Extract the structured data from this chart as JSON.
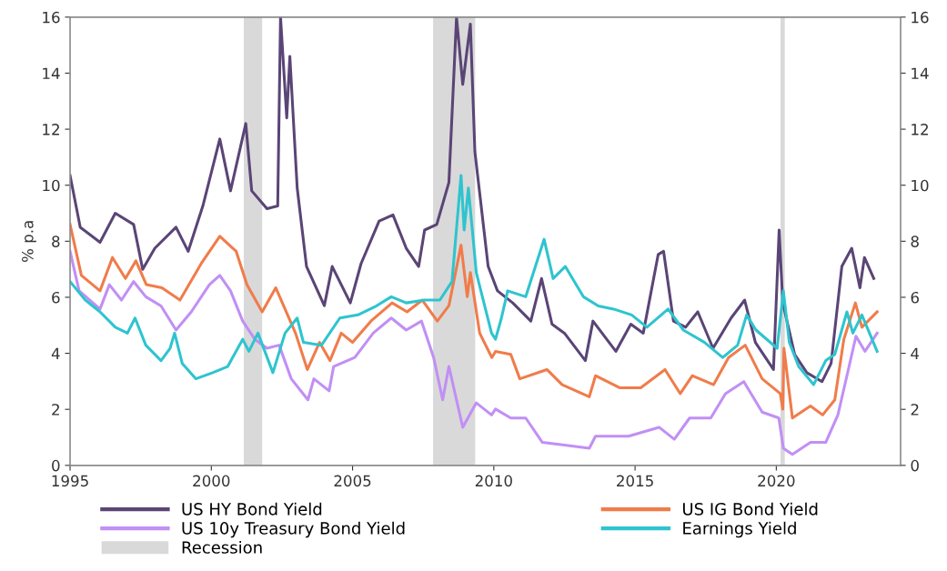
{
  "chart_data": {
    "type": "line",
    "ylabel": "% p.a",
    "xlim": [
      1995,
      2024.4
    ],
    "xticks": [
      1995,
      2000,
      2005,
      2010,
      2015,
      2020
    ],
    "ylim": [
      0,
      16
    ],
    "yticks": [
      0,
      2,
      4,
      6,
      8,
      10,
      12,
      14,
      16
    ],
    "y2lim": [
      0,
      16
    ],
    "y2ticks": [
      0,
      2,
      4,
      6,
      8,
      10,
      12,
      14,
      16
    ],
    "grid": false,
    "legend": "bottom",
    "marker": "none",
    "line_style": "solid",
    "bands": [
      {
        "axis": "x",
        "from": 2001.15,
        "to": 2001.8,
        "label": "Recession",
        "color": "#d9d9d9"
      },
      {
        "axis": "x",
        "from": 2007.85,
        "to": 2009.34,
        "color": "#d9d9d9"
      },
      {
        "axis": "x",
        "from": 2020.15,
        "to": 2020.3,
        "color": "#d9d9d9"
      }
    ],
    "series": [
      {
        "name": "US HY Bond Yield",
        "color": "#5a4576",
        "x": [
          1995.0,
          1995.36,
          1996.06,
          1996.6,
          1997.25,
          1997.57,
          1998.0,
          1998.75,
          1999.18,
          1999.7,
          2000.3,
          2000.68,
          2001.22,
          2001.43,
          2001.97,
          2002.35,
          2002.45,
          2002.67,
          2002.78,
          2003.04,
          2003.37,
          2004.0,
          2004.28,
          2004.92,
          2005.3,
          2005.94,
          2006.43,
          2006.9,
          2007.34,
          2007.55,
          2007.98,
          2008.41,
          2008.68,
          2008.9,
          2009.17,
          2009.33,
          2009.8,
          2010.13,
          2010.67,
          2011.31,
          2011.69,
          2012.06,
          2012.5,
          2013.24,
          2013.51,
          2014.32,
          2014.85,
          2015.29,
          2015.82,
          2016.01,
          2016.36,
          2016.79,
          2017.22,
          2017.76,
          2018.4,
          2018.88,
          2019.26,
          2019.9,
          2020.1,
          2020.23,
          2020.65,
          2021.08,
          2021.62,
          2021.94,
          2022.32,
          2022.67,
          2022.96,
          2023.12,
          2023.45
        ],
        "values": [
          10.35,
          8.5,
          7.96,
          9.0,
          8.6,
          7.0,
          7.75,
          8.5,
          7.64,
          9.26,
          11.65,
          9.8,
          12.2,
          9.8,
          9.16,
          9.26,
          16,
          12.4,
          14.6,
          9.9,
          7.1,
          5.7,
          7.1,
          5.8,
          7.2,
          8.72,
          8.94,
          7.75,
          7.1,
          8.4,
          8.6,
          10.1,
          16,
          13.6,
          15.75,
          11.2,
          7.1,
          6.23,
          5.8,
          5.15,
          6.67,
          5.04,
          4.72,
          3.74,
          5.15,
          4.07,
          5.04,
          4.72,
          7.53,
          7.64,
          5.15,
          4.93,
          5.48,
          4.18,
          5.26,
          5.9,
          4.39,
          3.42,
          8.4,
          5.8,
          3.96,
          3.31,
          2.99,
          3.64,
          7.1,
          7.75,
          6.34,
          7.42,
          6.67
        ]
      },
      {
        "name": "US IG Bond Yield",
        "color": "#f07c4a",
        "x": [
          1995.0,
          1995.4,
          1996.06,
          1996.5,
          1996.96,
          1997.33,
          1997.7,
          1998.25,
          1998.89,
          1999.64,
          2000.3,
          2000.88,
          2001.26,
          2001.8,
          2002.28,
          2002.98,
          2003.4,
          2003.83,
          2004.2,
          2004.6,
          2005.0,
          2005.65,
          2006.4,
          2006.93,
          2007.47,
          2008.0,
          2008.41,
          2008.84,
          2009.06,
          2009.17,
          2009.5,
          2009.93,
          2010.06,
          2010.6,
          2010.92,
          2011.88,
          2012.42,
          2013.38,
          2013.6,
          2014.45,
          2015.2,
          2016.06,
          2016.6,
          2017.03,
          2017.78,
          2018.31,
          2018.9,
          2019.5,
          2020.14,
          2020.23,
          2020.27,
          2020.57,
          2021.21,
          2021.64,
          2022.07,
          2022.39,
          2022.8,
          2023.03,
          2023.57
        ],
        "values": [
          8.6,
          6.78,
          6.23,
          7.42,
          6.67,
          7.3,
          6.45,
          6.34,
          5.9,
          7.2,
          8.18,
          7.64,
          6.45,
          5.48,
          6.34,
          4.72,
          3.42,
          4.39,
          3.74,
          4.72,
          4.39,
          5.15,
          5.8,
          5.48,
          5.9,
          5.15,
          5.7,
          7.86,
          6.02,
          6.88,
          4.72,
          3.85,
          4.07,
          3.96,
          3.09,
          3.42,
          2.88,
          2.45,
          3.2,
          2.77,
          2.77,
          3.42,
          2.56,
          3.2,
          2.88,
          3.85,
          4.29,
          3.09,
          2.56,
          2.01,
          4.18,
          1.69,
          2.12,
          1.8,
          2.34,
          4.5,
          5.8,
          4.93,
          5.48
        ]
      },
      {
        "name": "US 10y Treasury Bond Yield",
        "color": "#c18ff5",
        "x": [
          1995.0,
          1995.32,
          1996.06,
          1996.39,
          1996.82,
          1997.25,
          1997.68,
          1998.22,
          1998.75,
          1999.29,
          1999.93,
          2000.3,
          2000.68,
          2001.11,
          2001.54,
          2001.97,
          2002.4,
          2002.83,
          2003.42,
          2003.63,
          2004.17,
          2004.33,
          2005.08,
          2005.73,
          2006.37,
          2006.9,
          2007.44,
          2007.87,
          2008.19,
          2008.41,
          2008.9,
          2009.38,
          2009.92,
          2010.06,
          2010.6,
          2011.13,
          2011.72,
          2012.63,
          2013.38,
          2013.6,
          2014.77,
          2015.85,
          2016.39,
          2016.93,
          2017.68,
          2018.2,
          2018.85,
          2019.5,
          2020.09,
          2020.25,
          2020.57,
          2021.21,
          2021.75,
          2022.18,
          2022.5,
          2022.82,
          2023.14,
          2023.57
        ],
        "values": [
          7.64,
          6.23,
          5.58,
          6.45,
          5.9,
          6.56,
          6.02,
          5.69,
          4.83,
          5.48,
          6.45,
          6.78,
          6.23,
          5.15,
          4.5,
          4.18,
          4.29,
          3.09,
          2.34,
          3.09,
          2.66,
          3.53,
          3.85,
          4.72,
          5.26,
          4.83,
          5.15,
          3.85,
          2.34,
          3.53,
          1.36,
          2.23,
          1.8,
          2.01,
          1.69,
          1.69,
          0.82,
          0.71,
          0.61,
          1.04,
          1.04,
          1.36,
          0.93,
          1.69,
          1.69,
          2.56,
          2.99,
          1.9,
          1.69,
          0.61,
          0.39,
          0.82,
          0.82,
          1.8,
          3.2,
          4.61,
          4.07,
          4.72
        ]
      },
      {
        "name": "Earnings Yield",
        "color": "#2ec4cf",
        "x": [
          1995.0,
          1995.54,
          1996.06,
          1996.6,
          1997.03,
          1997.3,
          1997.68,
          1998.22,
          1998.54,
          1998.7,
          1998.97,
          1999.45,
          2000.05,
          2000.58,
          2001.11,
          2001.33,
          2001.65,
          2002.18,
          2002.61,
          2003.04,
          2003.26,
          2003.9,
          2004.55,
          2005.19,
          2005.84,
          2006.37,
          2006.9,
          2007.55,
          2008.09,
          2008.52,
          2008.84,
          2008.95,
          2009.1,
          2009.38,
          2009.92,
          2010.06,
          2010.27,
          2010.49,
          2011.13,
          2011.78,
          2012.1,
          2012.53,
          2013.17,
          2013.7,
          2014.24,
          2014.88,
          2015.42,
          2016.17,
          2016.71,
          2017.46,
          2018.1,
          2018.63,
          2018.95,
          2019.28,
          2020.03,
          2020.25,
          2020.46,
          2020.79,
          2021.32,
          2021.75,
          2022.07,
          2022.5,
          2022.71,
          2023.03,
          2023.57
        ],
        "values": [
          6.56,
          5.9,
          5.48,
          4.93,
          4.72,
          5.26,
          4.29,
          3.74,
          4.18,
          4.72,
          3.64,
          3.09,
          3.31,
          3.53,
          4.5,
          4.07,
          4.72,
          3.31,
          4.72,
          5.26,
          4.39,
          4.29,
          5.26,
          5.37,
          5.69,
          6.02,
          5.8,
          5.9,
          5.9,
          6.56,
          10.35,
          8.4,
          9.9,
          6.88,
          4.72,
          4.5,
          5.26,
          6.23,
          6.02,
          8.07,
          6.67,
          7.1,
          6.02,
          5.69,
          5.58,
          5.37,
          4.93,
          5.58,
          4.83,
          4.39,
          3.85,
          4.29,
          5.37,
          4.83,
          4.18,
          6.23,
          4.39,
          3.53,
          2.88,
          3.74,
          3.96,
          5.48,
          4.72,
          5.37,
          4.07
        ]
      }
    ]
  }
}
